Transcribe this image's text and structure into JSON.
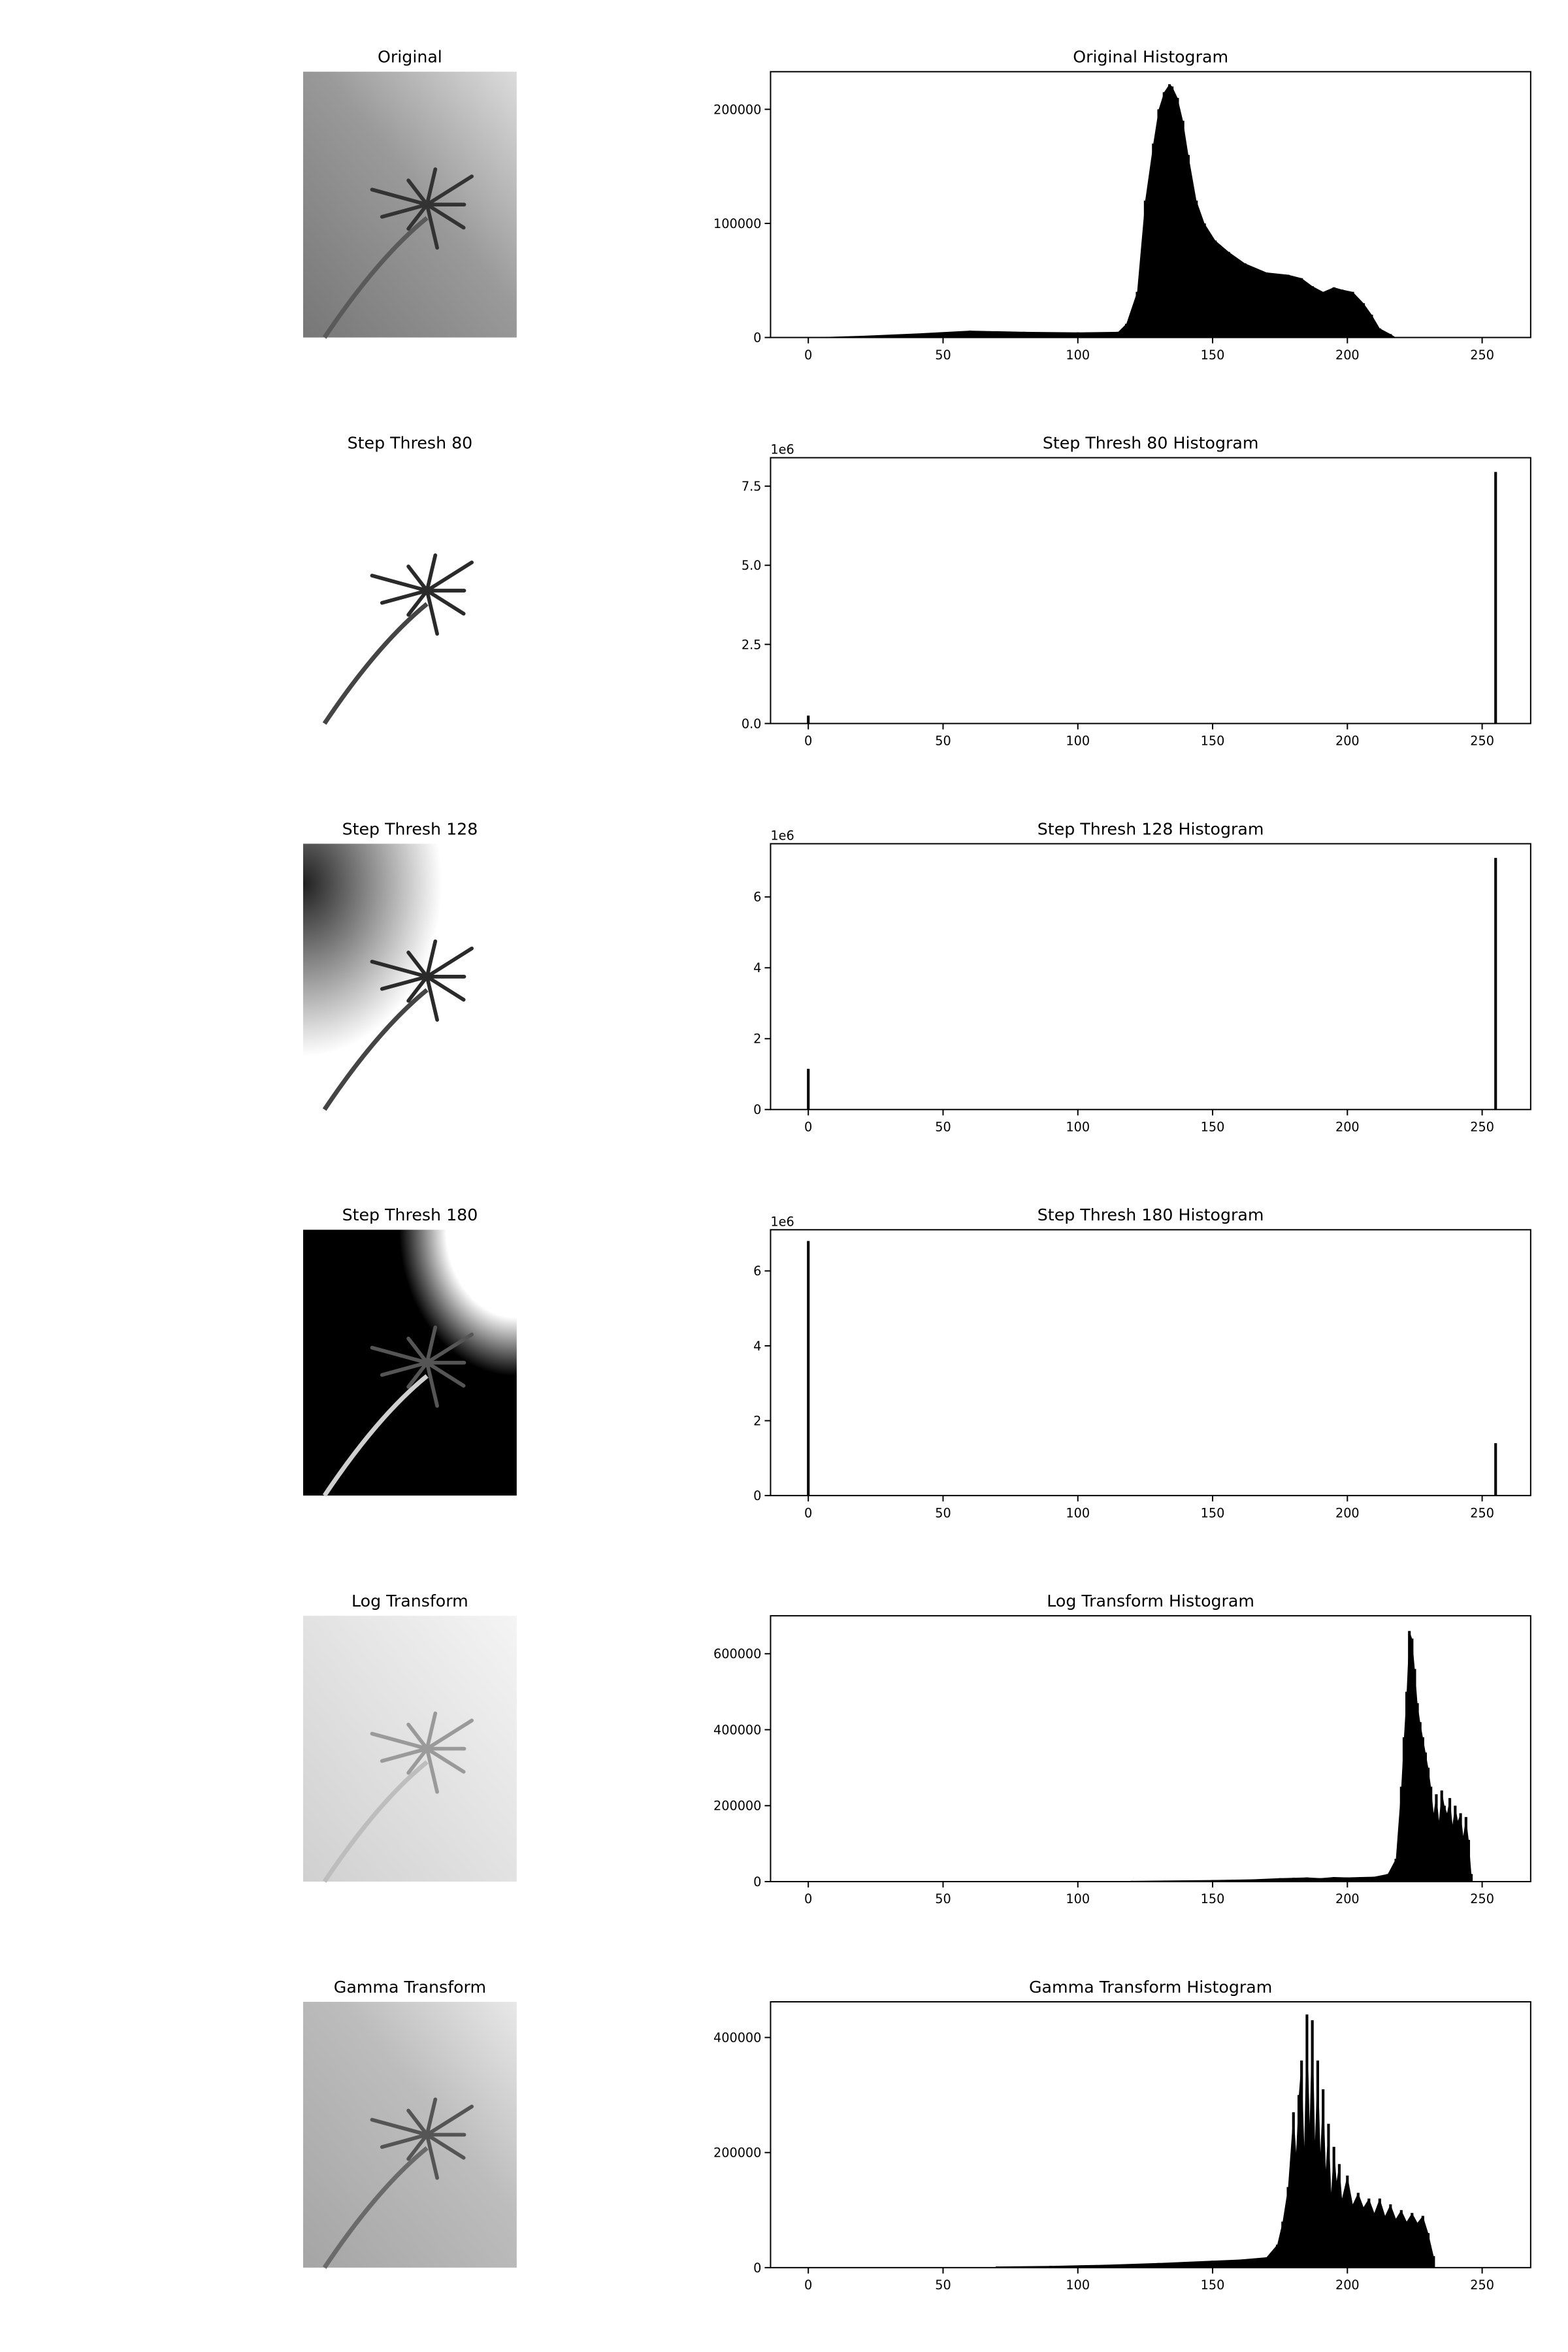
{
  "panels": [
    {
      "id": "original",
      "image_title": "Original",
      "image_style": "gradient-gray",
      "hist_title": "Original Histogram",
      "chart_data": {
        "type": "bar",
        "title": "Original Histogram",
        "xlabel": "",
        "ylabel": "",
        "xlim": [
          -14,
          268
        ],
        "ylim": [
          0,
          233000
        ],
        "xticks": [
          0,
          50,
          100,
          150,
          200,
          250
        ],
        "yticks": [
          0,
          100000,
          200000
        ],
        "ytick_labels": [
          "0",
          "100000",
          "200000"
        ],
        "offset_label": "",
        "series": [
          {
            "x": [
              0,
              20,
              40,
              60,
              80,
              100,
              115,
              118,
              122,
              125,
              128,
              130,
              132,
              134,
              135,
              137,
              139,
              141,
              144,
              147,
              151,
              156,
              162,
              170,
              178,
              183,
              187,
              191,
              195,
              198,
              202,
              206,
              209,
              212,
              216,
              218,
              219,
              255
            ],
            "values": [
              0,
              1500,
              3500,
              6000,
              5000,
              4500,
              5000,
              12000,
              40000,
              120000,
              170000,
              200000,
              215000,
              222000,
              220000,
              210000,
              190000,
              160000,
              120000,
              100000,
              85000,
              75000,
              65000,
              57000,
              55000,
              52000,
              45000,
              40000,
              44000,
              42000,
              40000,
              30000,
              20000,
              8000,
              3000,
              0,
              0,
              0
            ]
          }
        ]
      }
    },
    {
      "id": "step80",
      "image_title": "Step Thresh 80",
      "image_style": "white-tree-80",
      "hist_title": "Step Thresh 80 Histogram",
      "chart_data": {
        "type": "bar",
        "title": "Step Thresh 80 Histogram",
        "xlabel": "",
        "ylabel": "",
        "xlim": [
          -14,
          268
        ],
        "ylim": [
          0,
          8400000
        ],
        "xticks": [
          0,
          50,
          100,
          150,
          200,
          250
        ],
        "yticks": [
          0,
          2500000,
          5000000,
          7500000
        ],
        "ytick_labels": [
          "0.0",
          "2.5",
          "5.0",
          "7.5"
        ],
        "offset_label": "1e6",
        "series": [
          {
            "x": [
              0,
              255
            ],
            "values": [
              250000,
              7950000
            ]
          }
        ]
      }
    },
    {
      "id": "step128",
      "image_title": "Step Thresh 128",
      "image_style": "white-tree-128",
      "hist_title": "Step Thresh 128 Histogram",
      "chart_data": {
        "type": "bar",
        "title": "Step Thresh 128 Histogram",
        "xlabel": "",
        "ylabel": "",
        "xlim": [
          -14,
          268
        ],
        "ylim": [
          0,
          7500000
        ],
        "xticks": [
          0,
          50,
          100,
          150,
          200,
          250
        ],
        "yticks": [
          0,
          2000000,
          4000000,
          6000000
        ],
        "ytick_labels": [
          "0",
          "2",
          "4",
          "6"
        ],
        "offset_label": "1e6",
        "series": [
          {
            "x": [
              0,
              255
            ],
            "values": [
              1150000,
              7100000
            ]
          }
        ]
      }
    },
    {
      "id": "step180",
      "image_title": "Step Thresh 180",
      "image_style": "black-tree-180",
      "hist_title": "Step Thresh 180 Histogram",
      "chart_data": {
        "type": "bar",
        "title": "Step Thresh 180 Histogram",
        "xlabel": "",
        "ylabel": "",
        "xlim": [
          -14,
          268
        ],
        "ylim": [
          0,
          7100000
        ],
        "xticks": [
          0,
          50,
          100,
          150,
          200,
          250
        ],
        "yticks": [
          0,
          2000000,
          4000000,
          6000000
        ],
        "ytick_labels": [
          "0",
          "2",
          "4",
          "6"
        ],
        "offset_label": "1e6",
        "series": [
          {
            "x": [
              0,
              255
            ],
            "values": [
              6800000,
              1400000
            ]
          }
        ]
      }
    },
    {
      "id": "log",
      "image_title": "Log Transform",
      "image_style": "light-gray",
      "hist_title": "Log Transform Histogram",
      "chart_data": {
        "type": "bar",
        "title": "Log Transform Histogram",
        "xlabel": "",
        "ylabel": "",
        "xlim": [
          -14,
          268
        ],
        "ylim": [
          0,
          700000
        ],
        "xticks": [
          0,
          50,
          100,
          150,
          200,
          250
        ],
        "yticks": [
          0,
          200000,
          400000,
          600000
        ],
        "ytick_labels": [
          "0",
          "200000",
          "400000",
          "600000"
        ],
        "offset_label": "",
        "series": [
          {
            "x": [
              120,
              150,
              165,
              175,
              180,
              185,
              190,
              195,
              200,
              205,
              210,
              215,
              218,
              220,
              221,
              222,
              223,
              224,
              225,
              226,
              227,
              228,
              229,
              230,
              231,
              232,
              233,
              234,
              235,
              236,
              237,
              238,
              239,
              240,
              241,
              242,
              243,
              244,
              245,
              246
            ],
            "values": [
              2000,
              4000,
              6000,
              9000,
              10000,
              11000,
              9000,
              12000,
              11000,
              12000,
              13000,
              20000,
              60000,
              250000,
              380000,
              500000,
              660000,
              640000,
              560000,
              470000,
              420000,
              380000,
              340000,
              300000,
              250000,
              180000,
              230000,
              160000,
              240000,
              200000,
              180000,
              220000,
              150000,
              200000,
              160000,
              180000,
              120000,
              170000,
              110000,
              20000
            ]
          }
        ]
      }
    },
    {
      "id": "gamma",
      "image_title": "Gamma Transform",
      "image_style": "medium-gray",
      "hist_title": "Gamma Transform Histogram",
      "chart_data": {
        "type": "bar",
        "title": "Gamma Transform Histogram",
        "xlabel": "",
        "ylabel": "",
        "xlim": [
          -14,
          268
        ],
        "ylim": [
          0,
          462000
        ],
        "xticks": [
          0,
          50,
          100,
          150,
          200,
          250
        ],
        "yticks": [
          0,
          200000,
          400000
        ],
        "ytick_labels": [
          "0",
          "200000",
          "400000"
        ],
        "offset_label": "",
        "series": [
          {
            "x": [
              70,
              90,
              110,
              130,
              140,
              150,
              160,
              170,
              174,
              176,
              178,
              180,
              181,
              182,
              183,
              184,
              185,
              186,
              187,
              188,
              189,
              190,
              191,
              192,
              193,
              194,
              195,
              196,
              197,
              198,
              200,
              202,
              204,
              206,
              208,
              210,
              212,
              214,
              216,
              218,
              220,
              222,
              224,
              226,
              228,
              230,
              232
            ],
            "values": [
              2000,
              3000,
              5000,
              8000,
              10000,
              12000,
              14000,
              18000,
              40000,
              80000,
              140000,
              270000,
              200000,
              300000,
              360000,
              210000,
              440000,
              250000,
              430000,
              220000,
              360000,
              200000,
              310000,
              170000,
              250000,
              130000,
              210000,
              150000,
              180000,
              120000,
              160000,
              110000,
              130000,
              105000,
              120000,
              95000,
              120000,
              90000,
              110000,
              85000,
              100000,
              80000,
              95000,
              78000,
              90000,
              60000,
              20000
            ]
          }
        ]
      }
    }
  ]
}
